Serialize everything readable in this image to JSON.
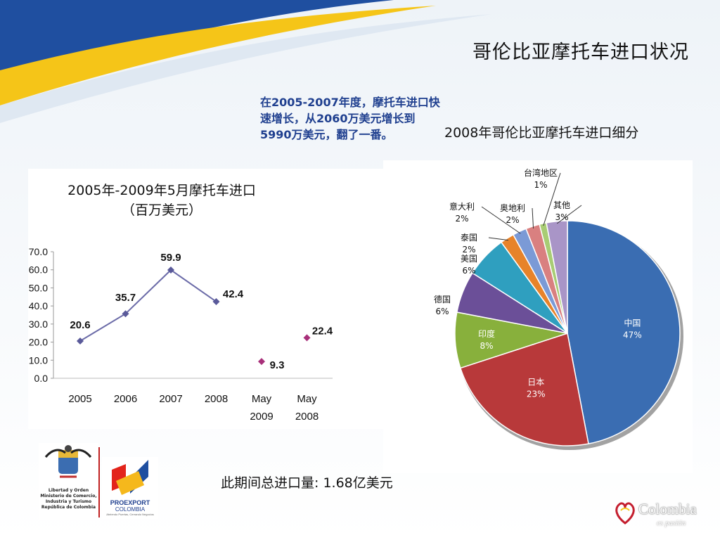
{
  "slide": {
    "title": "哥伦比亚摩托车进口状况",
    "note": "在2005-2007年度，摩托车进口快速增长，从2060万美元增长到5990万美元，翻了一番。",
    "total": "此期间总进口量: 1.68亿美元",
    "logos": {
      "ministry_lines": [
        "Libertad y Orden",
        "Ministerio de Comercio,",
        "Industria y Turismo",
        "República de Colombia"
      ],
      "proexport_name": "PROEXPORT",
      "proexport_country": "COLOMBIA",
      "proexport_tagline": "Abriendo Puertas, Cerrando Negocios",
      "colombia_brand": "Colombia",
      "colombia_tagline": "es pasión"
    },
    "colors": {
      "line": "#6b6ba8",
      "marker_main": "#5a5a9a",
      "marker_may": "#a8307a",
      "stripe_blue": "#1f4fa0",
      "stripe_yellow": "#f5c518"
    }
  },
  "chart_data": [
    {
      "type": "line",
      "title": "2005年-2009年5月摩托车进口",
      "subtitle": "（百万美元）",
      "categories": [
        "2005",
        "2006",
        "2007",
        "2008",
        "May\n2009",
        "May\n2008"
      ],
      "series": [
        {
          "values": [
            20.6,
            35.7,
            59.9,
            42.4,
            null,
            null
          ]
        },
        {
          "values": [
            null,
            null,
            null,
            null,
            9.3,
            22.4
          ]
        }
      ],
      "data_labels": [
        "20.6",
        "35.7",
        "59.9",
        "42.4",
        "9.3",
        "22.4"
      ],
      "y_ticks": [
        "70.0",
        "60.0",
        "50.0",
        "40.0",
        "30.0",
        "20.0",
        "10.0",
        "0.0"
      ],
      "ylim": [
        0,
        70
      ],
      "grid": false
    },
    {
      "type": "pie",
      "title": "2008年哥伦比亚摩托车进口细分",
      "slices": [
        {
          "label": "中国",
          "pct": "47%",
          "value": 47,
          "color": "#3a6db2"
        },
        {
          "label": "日本",
          "pct": "23%",
          "value": 23,
          "color": "#b8393a"
        },
        {
          "label": "印度",
          "pct": "8%",
          "value": 8,
          "color": "#88b03c"
        },
        {
          "label": "德国",
          "pct": "6%",
          "value": 6,
          "color": "#6b4f98"
        },
        {
          "label": "美国",
          "pct": "6%",
          "value": 6,
          "color": "#2f9fbf"
        },
        {
          "label": "泰国",
          "pct": "2%",
          "value": 2,
          "color": "#e7832a"
        },
        {
          "label": "意大利",
          "pct": "2%",
          "value": 2,
          "color": "#7b9ad6"
        },
        {
          "label": "奥地利",
          "pct": "2%",
          "value": 2,
          "color": "#d98080"
        },
        {
          "label": "台湾地区",
          "pct": "1%",
          "value": 1,
          "color": "#a8cc74"
        },
        {
          "label": "其他",
          "pct": "3%",
          "value": 3,
          "color": "#a995c7"
        }
      ]
    }
  ]
}
